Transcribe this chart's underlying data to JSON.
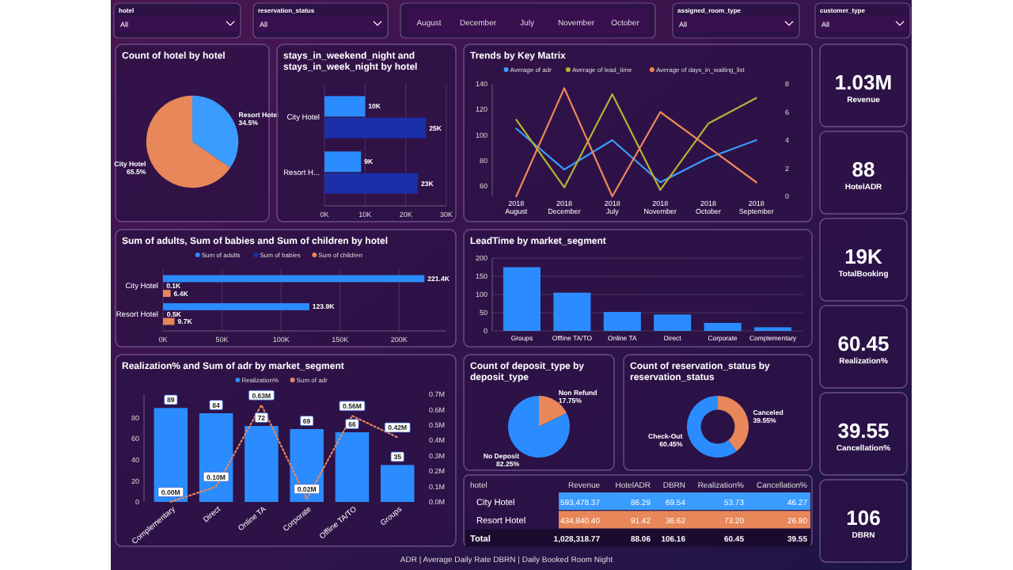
{
  "chart_data": [
    {
      "type": "other",
      "categories": [
        "hotel",
        "reservation_status",
        "assigned_room_type",
        "customer_type"
      ],
      "value_labels": [
        "All",
        "All",
        "All",
        "All"
      ],
      "annotations": [
        "August",
        "December",
        "July",
        "November",
        "October"
      ]
    },
    {
      "type": "pie",
      "title": "Count of hotel by hotel",
      "categories": [
        "Resort Hotel",
        "City Hotel"
      ],
      "values": [
        34.5,
        65.5
      ],
      "value_labels": [
        "34.5%",
        "65.5%"
      ],
      "colors": [
        "#3a9cff",
        "#e8875a"
      ]
    },
    {
      "type": "bar",
      "orientation": "horizontal",
      "title": "stays_in_weekend_night and stays_in_week_night by hotel",
      "categories": [
        "City Hotel",
        "Resort H..."
      ],
      "grid": "x",
      "xlim": [
        0,
        30000
      ],
      "xticks": [
        {
          "value": 0,
          "label": "0K"
        },
        {
          "value": 10000,
          "label": "10K"
        },
        {
          "value": 20000,
          "label": "20K"
        },
        {
          "value": 30000,
          "label": "30K"
        }
      ],
      "series": [
        {
          "color": "#2b8cff",
          "values": [
            10000,
            9000
          ],
          "value_labels": [
            "10K",
            "9K"
          ]
        },
        {
          "color": "#1a2fa8",
          "values": [
            25000,
            23000
          ],
          "value_labels": [
            "25K",
            "23K"
          ]
        }
      ]
    },
    {
      "type": "line",
      "title": "Trends by Key Matrix",
      "legend": "top",
      "categories": [
        "2018 August",
        "2018 December",
        "2018 July",
        "2018 November",
        "2018 October",
        "2018 September"
      ],
      "ylim": [
        52,
        140
      ],
      "yticks": [
        60,
        80,
        100,
        120,
        140
      ],
      "y2lim": [
        0,
        8
      ],
      "y2ticks": [
        0,
        2,
        4,
        6,
        8
      ],
      "series": [
        {
          "name": "Average of adr",
          "color": "#3a9cff",
          "values": [
            105,
            73,
            96,
            63,
            82,
            96
          ]
        },
        {
          "name": "Average of lead_time",
          "color": "#b5b335",
          "values": [
            112,
            59,
            132,
            57,
            109,
            129
          ]
        },
        {
          "name": "Average of days_in_waiting_list",
          "color": "#f0875a",
          "axis": "y2",
          "values": [
            0,
            7.7,
            0,
            6,
            3.5,
            1
          ]
        }
      ]
    },
    {
      "type": "other",
      "categories": [
        "Revenue",
        "HotelADR",
        "TotalBooking",
        "Realization%",
        "Cancellation%",
        "DBRN"
      ],
      "value_labels": [
        "1.03M",
        "88",
        "19K",
        "60.45",
        "39.55",
        "106"
      ]
    },
    {
      "type": "bar",
      "orientation": "horizontal",
      "title": "Sum of adults, Sum of babies and Sum of children by hotel",
      "legend": "top",
      "categories": [
        "City Hotel",
        "Resort Hotel"
      ],
      "grid": "x",
      "xlim": [
        0,
        240000
      ],
      "xticks": [
        {
          "value": 0,
          "label": "0K"
        },
        {
          "value": 50000,
          "label": "50K"
        },
        {
          "value": 100000,
          "label": "100K"
        },
        {
          "value": 150000,
          "label": "150K"
        },
        {
          "value": 200000,
          "label": "200K"
        }
      ],
      "series": [
        {
          "name": "Sum of adults",
          "color": "#2b8cff",
          "values": [
            221400,
            123900
          ],
          "value_labels": [
            "221.4K",
            "123.9K"
          ]
        },
        {
          "name": "Sum of babies",
          "color": "#1a2fa8",
          "values": [
            100,
            500
          ],
          "value_labels": [
            "0.1K",
            "0.5K"
          ]
        },
        {
          "name": "Sum of children",
          "color": "#e8875a",
          "values": [
            6400,
            9700
          ],
          "value_labels": [
            "6.4K",
            "9.7K"
          ]
        }
      ]
    },
    {
      "type": "bar",
      "title": "LeadTime by market_segment",
      "categories": [
        "Groups",
        "Offline TA/TO",
        "Online TA",
        "Direct",
        "Corporate",
        "Complementary"
      ],
      "grid": "y",
      "ylim": [
        0,
        200
      ],
      "yticks": [
        0,
        50,
        100,
        150,
        200
      ],
      "series": [
        {
          "color": "#2b8cff",
          "values": [
            175,
            105,
            52,
            45,
            22,
            10
          ]
        }
      ]
    },
    {
      "type": "bar",
      "title": "Realization% and Sum of adr by market_segment",
      "legend": "top",
      "categories": [
        "Complementary",
        "Direct",
        "Online TA",
        "Corporate",
        "Offline TA/TO",
        "Groups"
      ],
      "ylim": [
        0,
        102
      ],
      "yticks": [
        0,
        20,
        40,
        60,
        80
      ],
      "y2lim": [
        0,
        0.7
      ],
      "y2ticks": [
        {
          "value": 0,
          "label": "0.0M"
        },
        {
          "value": 0.1,
          "label": "0.1M"
        },
        {
          "value": 0.2,
          "label": "0.2M"
        },
        {
          "value": 0.3,
          "label": "0.3M"
        },
        {
          "value": 0.4,
          "label": "0.4M"
        },
        {
          "value": 0.5,
          "label": "0.5M"
        },
        {
          "value": 0.6,
          "label": "0.6M"
        },
        {
          "value": 0.7,
          "label": "0.7M"
        }
      ],
      "series": [
        {
          "name": "Realization%",
          "color": "#2b8cff",
          "values": [
            89,
            84,
            72,
            69,
            66,
            35
          ],
          "value_labels": [
            "89",
            "84",
            "72",
            "69",
            "66",
            "35"
          ]
        },
        {
          "name": "Sum of adr",
          "type": "line",
          "axis": "y2",
          "line_style": "dotted",
          "color": "#e8875a",
          "values": [
            0,
            0.1,
            0.63,
            0.02,
            0.56,
            0.42
          ],
          "value_labels": [
            "0.00M",
            "0.10M",
            "0.63M",
            "0.02M",
            "0.56M",
            "0.42M"
          ]
        }
      ]
    },
    {
      "type": "pie",
      "title": "Count of deposit_type by deposit_type",
      "categories": [
        "Non Refund",
        "No Deposit"
      ],
      "values": [
        17.75,
        82.25
      ],
      "value_labels": [
        "17.75%",
        "82.25%"
      ],
      "colors": [
        "#e8875a",
        "#2b8cff"
      ]
    },
    {
      "type": "donut",
      "title": "Count of reservation_status by reservation_status",
      "categories": [
        "Canceled",
        "Check-Out"
      ],
      "values": [
        39.55,
        60.45
      ],
      "value_labels": [
        "39.55%",
        "60.45%"
      ],
      "colors": [
        "#e8875a",
        "#2b8cff"
      ]
    },
    {
      "type": "other",
      "categories": [
        "hotel",
        "Revenue",
        "HotelADR",
        "DBRN",
        "Realization%",
        "Cancellation%"
      ],
      "y_categories": [
        "City Hotel",
        "Resort Hotel",
        "Total"
      ],
      "cell_labels": [
        [
          "593,478.37",
          "86.29",
          "69.54",
          "53.73",
          "46.27"
        ],
        [
          "434,840.40",
          "91.42",
          "36.62",
          "73.20",
          "26.80"
        ],
        [
          "1,028,318.77",
          "88.06",
          "106.16",
          "60.45",
          "39.55"
        ]
      ],
      "annotations": [
        "ADR | Average Daily Rate",
        "DBRN | Daily Booked Room Night"
      ]
    }
  ]
}
